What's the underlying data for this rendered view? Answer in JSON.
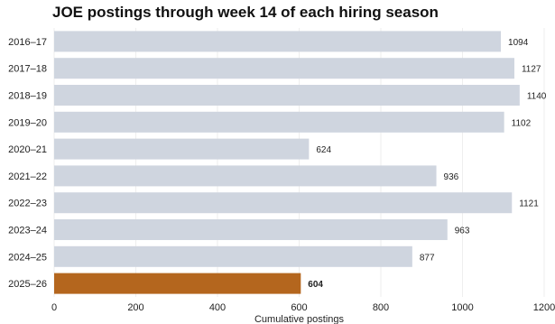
{
  "chart_data": {
    "type": "bar",
    "orientation": "horizontal",
    "title": "JOE postings through week 14 of each hiring season",
    "xlabel": "Cumulative postings",
    "ylabel": "",
    "categories": [
      "2016–17",
      "2017–18",
      "2018–19",
      "2019–20",
      "2020–21",
      "2021–22",
      "2022–23",
      "2023–24",
      "2024–25",
      "2025–26"
    ],
    "values": [
      1094,
      1127,
      1140,
      1102,
      624,
      936,
      1121,
      963,
      877,
      604
    ],
    "xlim": [
      0,
      1200
    ],
    "xticks": [
      0,
      200,
      400,
      600,
      800,
      1000,
      1200
    ],
    "grid": "vertical",
    "highlight_index": 9,
    "colors": {
      "bar": "#cfd5df",
      "highlight": "#b4661e",
      "highlight_label": "#b4661e",
      "grid": "#eeeeee"
    }
  }
}
